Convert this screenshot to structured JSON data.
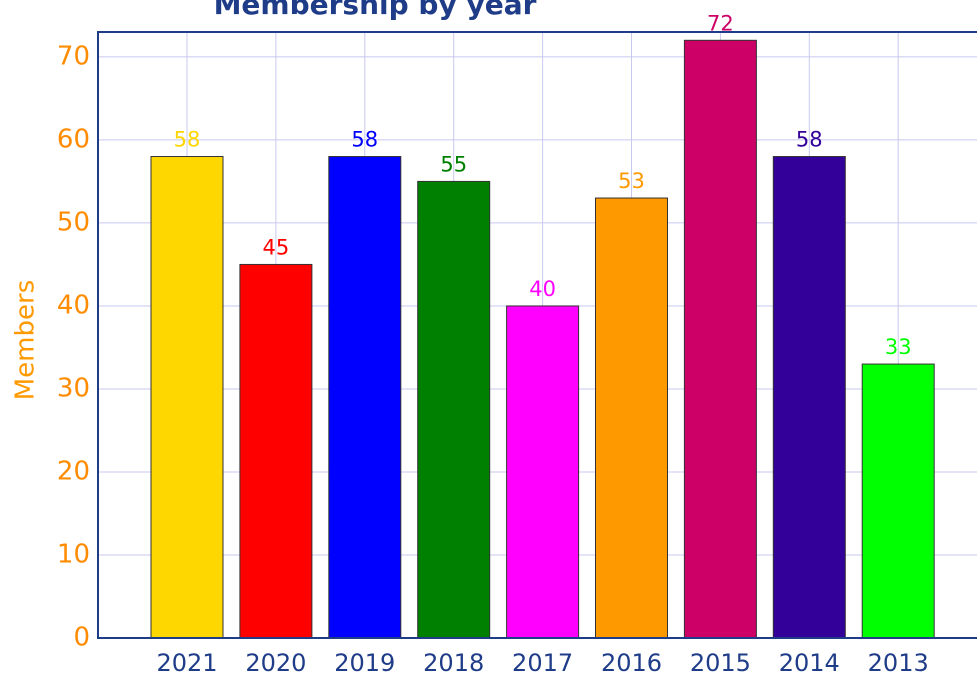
{
  "chart_data": {
    "type": "bar",
    "title": "Membership by year",
    "y_label": "Members",
    "categories": [
      "2021",
      "2020",
      "2019",
      "2018",
      "2017",
      "2016",
      "2015",
      "2014",
      "2013"
    ],
    "values": [
      58,
      45,
      58,
      55,
      40,
      53,
      72,
      58,
      33
    ],
    "colors": [
      "#ffd700",
      "#ff0000",
      "#0000ff",
      "#008000",
      "#ff00ff",
      "#ff9900",
      "#cc0066",
      "#330099",
      "#00ff00"
    ],
    "ylim": [
      0,
      73
    ],
    "yticks": [
      0,
      10,
      20,
      30,
      40,
      50,
      60,
      70
    ],
    "grid": true
  }
}
